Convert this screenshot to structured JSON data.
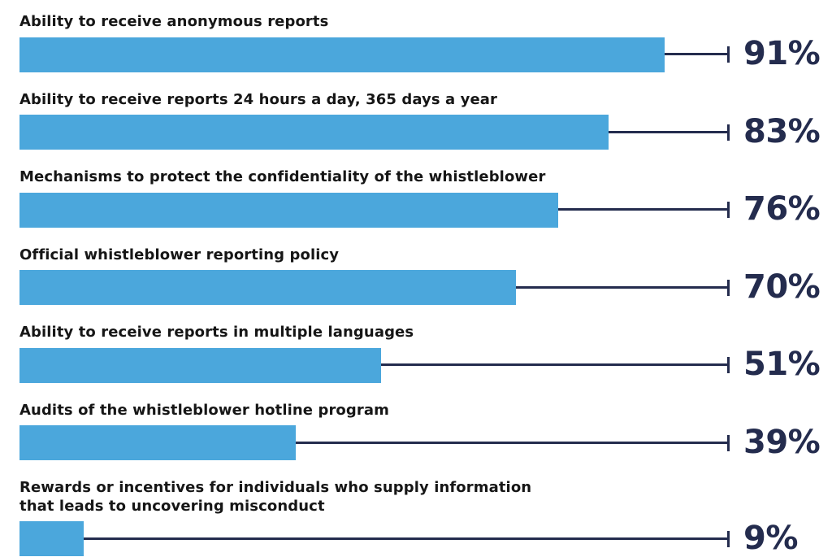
{
  "chart_data": {
    "type": "bar",
    "orientation": "horizontal",
    "title": "",
    "xlabel": "",
    "ylabel": "",
    "xlim": [
      0,
      100
    ],
    "grid": false,
    "legend": false,
    "categories": [
      "Ability to receive anonymous reports",
      "Ability to receive reports 24 hours a day, 365 days a year",
      "Mechanisms to protect the confidentiality of the whistleblower",
      "Official whistleblower reporting policy",
      "Ability to receive reports in multiple languages",
      "Audits of the whistleblower hotline program",
      "Rewards or incentives for individuals who supply information\nthat leads to uncovering misconduct"
    ],
    "values": [
      91,
      83,
      76,
      70,
      51,
      39,
      9
    ],
    "value_labels": [
      "91%",
      "83%",
      "76%",
      "70%",
      "51%",
      "39%",
      "9%"
    ],
    "style": {
      "bar_color": "#4BA7DC",
      "line_color": "#242C4E",
      "value_color": "#242C4E",
      "label_color": "#161616",
      "background": "#FFFFFF"
    }
  }
}
